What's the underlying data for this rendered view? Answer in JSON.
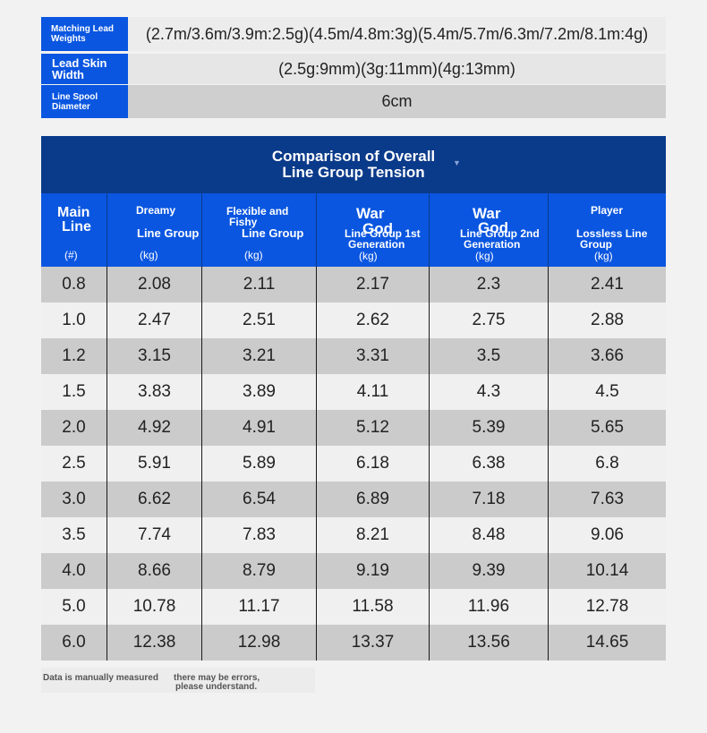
{
  "specs": [
    {
      "label": "Matching Lead Weights",
      "value": "(2.7m/3.6m/3.9m:2.5g)(4.5m/4.8m:3g)(5.4m/5.7m/6.3m/7.2m/8.1m:4g)"
    },
    {
      "label": "Lead Skin Width",
      "value": "(2.5g:9mm)(3g:11mm)(4g:13mm)"
    },
    {
      "label": "Line Spool Diameter",
      "value": "6cm"
    }
  ],
  "table": {
    "title_line1": "Comparison of Overall",
    "title_line2": "Line Group Tension",
    "headers": [
      {
        "top": "Main",
        "top2": "Line",
        "unit": "(#)"
      },
      {
        "top": "Dreamy",
        "sub": "Line Group",
        "unit": "(kg)"
      },
      {
        "top": "Flexible and",
        "top2": "Fishy",
        "sub": "Line Group",
        "unit": "(kg)"
      },
      {
        "top": "War",
        "top2": "God",
        "sub": "Line Group 1st",
        "sub2": "Generation",
        "unit": "(kg)"
      },
      {
        "top": "War",
        "top2": "God",
        "sub": "Line Group 2nd",
        "sub2": "Generation",
        "unit": "(kg)"
      },
      {
        "top": "Player",
        "sub": "Lossless Line",
        "sub2": "Group",
        "unit": "(kg)"
      }
    ],
    "rows": [
      [
        "0.8",
        "2.08",
        "2.11",
        "2.17",
        "2.3",
        "2.41"
      ],
      [
        "1.0",
        "2.47",
        "2.51",
        "2.62",
        "2.75",
        "2.88"
      ],
      [
        "1.2",
        "3.15",
        "3.21",
        "3.31",
        "3.5",
        "3.66"
      ],
      [
        "1.5",
        "3.83",
        "3.89",
        "4.11",
        "4.3",
        "4.5"
      ],
      [
        "2.0",
        "4.92",
        "4.91",
        "5.12",
        "5.39",
        "5.65"
      ],
      [
        "2.5",
        "5.91",
        "5.89",
        "6.18",
        "6.38",
        "6.8"
      ],
      [
        "3.0",
        "6.62",
        "6.54",
        "6.89",
        "7.18",
        "7.63"
      ],
      [
        "3.5",
        "7.74",
        "7.83",
        "8.21",
        "8.48",
        "9.06"
      ],
      [
        "4.0",
        "8.66",
        "8.79",
        "9.19",
        "9.39",
        "10.14"
      ],
      [
        "5.0",
        "10.78",
        "11.17",
        "11.58",
        "11.96",
        "12.78"
      ],
      [
        "6.0",
        "12.38",
        "12.98",
        "13.37",
        "13.56",
        "14.65"
      ]
    ]
  },
  "note": {
    "part1": "Data is manually measured",
    "part2": "there may be errors,",
    "part3": "please understand."
  },
  "colors": {
    "header_blue": "#0a56e0",
    "title_navy": "#0a3a8a"
  }
}
